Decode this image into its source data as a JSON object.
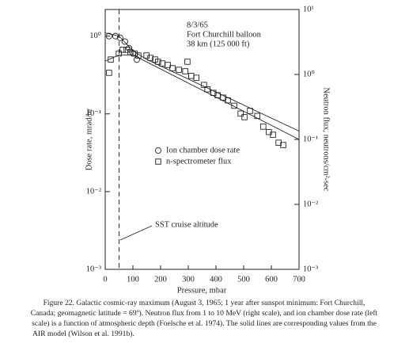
{
  "chart_data": {
    "type": "scatter",
    "xlabel": "Pressure, mbar",
    "ylabel": "Dose rate, mrad/hr",
    "y2label": "Neutron flux, neutrons/cm²-sec",
    "xlim": [
      0,
      700
    ],
    "xticks": [
      0,
      100,
      200,
      300,
      400,
      500,
      600,
      700
    ],
    "ylim": [
      0.001,
      2.2
    ],
    "yticks": [
      {
        "value": 0.001,
        "label": "10⁻³"
      },
      {
        "value": 0.01,
        "label": "10⁻²"
      },
      {
        "value": 0.1,
        "label": "10⁻¹"
      },
      {
        "value": 1,
        "label": "10⁰"
      }
    ],
    "y2lim": [
      0.001,
      10
    ],
    "y2ticks": [
      {
        "value": 0.001,
        "label": "10⁻³"
      },
      {
        "value": 0.01,
        "label": "10⁻²"
      },
      {
        "value": 0.1,
        "label": "10⁻¹"
      },
      {
        "value": 1,
        "label": "10⁰"
      },
      {
        "value": 10,
        "label": "10¹"
      }
    ],
    "log_scale": true,
    "color": "#222222",
    "vline_x": 50,
    "annotations": [
      "8/3/65",
      "Fort Churchill balloon",
      "38 km (125 000 ft)",
      "SST cruise altitude"
    ],
    "series": [
      {
        "name": "Ion chamber dose rate",
        "kind": "scatter",
        "marker": "circle",
        "axis": "y",
        "x": [
          14,
          37,
          54,
          71,
          86,
          100,
          114
        ],
        "values": [
          1.0,
          1.0,
          0.95,
          0.85,
          0.7,
          0.6,
          0.5
        ]
      },
      {
        "name": "n-spectrometer flux",
        "kind": "scatter",
        "marker": "square",
        "axis": "y2",
        "x": [
          14,
          20,
          49,
          63,
          77,
          91,
          106,
          120,
          149,
          163,
          180,
          191,
          206,
          226,
          243,
          266,
          289,
          297,
          311,
          329,
          357,
          369,
          391,
          406,
          426,
          443,
          466,
          489,
          503,
          523,
          549,
          571,
          591,
          606,
          626,
          643
        ],
        "values": [
          1.06,
          1.7,
          2.1,
          2.4,
          2.4,
          2.2,
          2.1,
          1.96,
          1.96,
          1.8,
          1.7,
          1.57,
          1.48,
          1.4,
          1.25,
          1.18,
          1.12,
          1.57,
          0.95,
          0.89,
          0.69,
          0.59,
          0.52,
          0.48,
          0.44,
          0.4,
          0.33,
          0.25,
          0.22,
          0.275,
          0.23,
          0.157,
          0.13,
          0.118,
          0.089,
          0.082
        ]
      },
      {
        "kind": "line",
        "axis": "y",
        "x": [
          0,
          50,
          100,
          150,
          700
        ],
        "values": [
          1.1,
          1.0,
          0.65,
          0.5,
          0.06
        ]
      },
      {
        "kind": "line",
        "axis": "y2",
        "x": [
          0,
          50,
          100,
          700
        ],
        "values": [
          1.6,
          2.0,
          2.0,
          0.1
        ]
      }
    ],
    "caption": [
      "Figure 22.  Galactic cosmic-ray maximum (August 3, 1965; 1 year after sunspot minimum:  Fort Churchill,",
      "Canada; geomagnetic latitude = 69º).  Neutron flux from 1 to 10 MeV (right scale), and ion chamber dose rate (left",
      "scale) is a function of atmospheric depth (Foelsche et al. 1974).  The solid lines are corresponding values from the",
      "AIR model (Wilson et al. 1991b)."
    ]
  }
}
